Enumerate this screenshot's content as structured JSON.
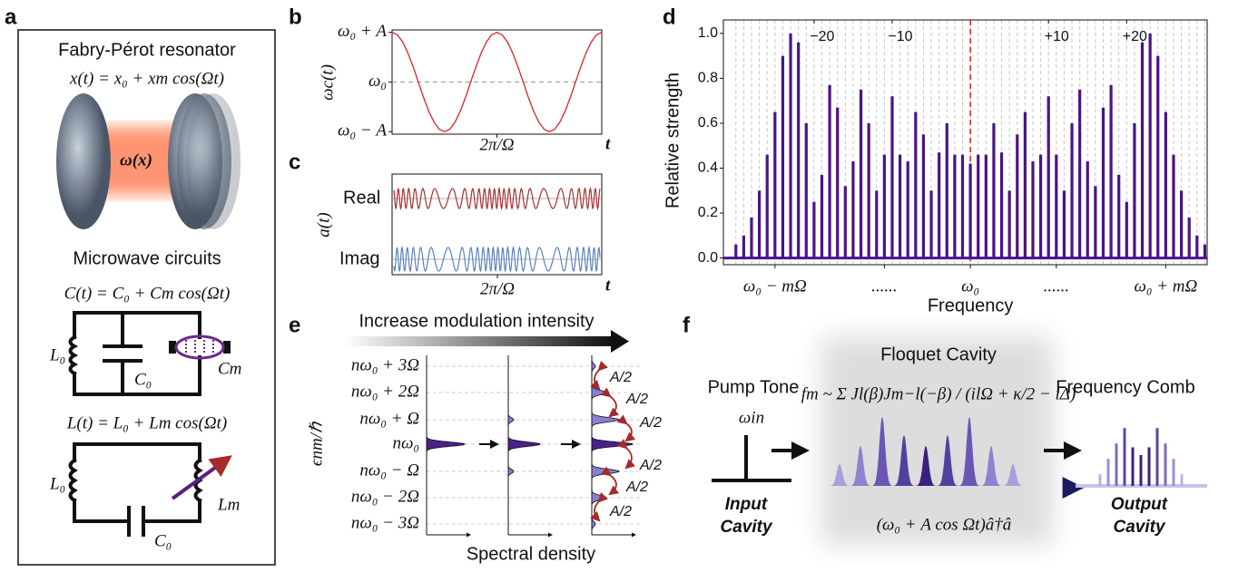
{
  "panel_labels": [
    "a",
    "b",
    "c",
    "d",
    "e",
    "f"
  ],
  "chart_data": [
    {
      "type": "line",
      "ylabel": "ωc(t)",
      "xlabel": "t",
      "color": "#d62728",
      "x": [
        0,
        0.05,
        0.1,
        0.15,
        0.2,
        0.25,
        0.3,
        0.35,
        0.4,
        0.45,
        0.5,
        0.55,
        0.6,
        0.65,
        0.7,
        0.75,
        0.8,
        0.85,
        0.9,
        0.95,
        1,
        1.05,
        1.1,
        1.15,
        1.2,
        1.25,
        1.3,
        1.35,
        1.4,
        1.45,
        1.5,
        1.55,
        1.6,
        1.65,
        1.7,
        1.75,
        1.8,
        1.85,
        1.9,
        1.95,
        2
      ],
      "values": [
        1,
        0.951,
        0.809,
        0.588,
        0.309,
        0,
        -0.309,
        -0.588,
        -0.809,
        -0.951,
        -1,
        -0.951,
        -0.809,
        -0.588,
        -0.309,
        0,
        0.309,
        0.588,
        0.809,
        0.951,
        1,
        0.951,
        0.809,
        0.588,
        0.309,
        0,
        -0.309,
        -0.588,
        -0.809,
        -0.951,
        -1,
        -0.951,
        -0.809,
        -0.588,
        -0.309,
        0,
        0.309,
        0.588,
        0.809,
        0.951,
        1
      ],
      "xlim": [
        0,
        2
      ],
      "ylim": [
        -1.05,
        1.05
      ],
      "xticks": [
        {
          "value": 1,
          "label": "2π/Ω"
        }
      ],
      "yticks": [
        {
          "value": 1,
          "label": "ω₀ + A"
        },
        {
          "value": 0,
          "label": "ω₀"
        },
        {
          "value": -1,
          "label": "ω₀ − A"
        }
      ],
      "ref_line": {
        "value": 0,
        "color": "#999999"
      }
    },
    {
      "type": "bar",
      "ylabel": "Relative strength",
      "xlabel": "Frequency",
      "color": "#4a1486",
      "grid": true,
      "x": [
        -30,
        -29,
        -28,
        -27,
        -26,
        -25,
        -24,
        -23,
        -22,
        -21,
        -20,
        -19,
        -18,
        -17,
        -16,
        -15,
        -14,
        -13,
        -12,
        -11,
        -10,
        -9,
        -8,
        -7,
        -6,
        -5,
        -4,
        -3,
        -2,
        -1,
        0,
        1,
        2,
        3,
        4,
        5,
        6,
        7,
        8,
        9,
        10,
        11,
        12,
        13,
        14,
        15,
        16,
        17,
        18,
        19,
        20,
        21,
        22,
        23,
        24,
        25,
        26,
        27,
        28,
        29,
        30
      ],
      "values": [
        0.06,
        0.1,
        0.18,
        0.3,
        0.46,
        0.65,
        0.9,
        1.0,
        0.96,
        0.6,
        0.25,
        0.37,
        0.77,
        0.67,
        0.32,
        0.43,
        0.75,
        0.6,
        0.3,
        0.46,
        0.72,
        0.46,
        0.43,
        0.65,
        0.55,
        0.3,
        0.47,
        0.6,
        0.46,
        0.46,
        0.42,
        0.46,
        0.46,
        0.6,
        0.47,
        0.3,
        0.55,
        0.65,
        0.43,
        0.46,
        0.72,
        0.46,
        0.3,
        0.6,
        0.75,
        0.43,
        0.32,
        0.67,
        0.77,
        0.37,
        0.25,
        0.6,
        0.96,
        1.0,
        0.9,
        0.65,
        0.46,
        0.3,
        0.18,
        0.1,
        0.06
      ],
      "xlim": [
        -31.6,
        30.3
      ],
      "ylim": [
        -0.03,
        1.06
      ],
      "yticks": [
        {
          "value": 0,
          "label": "0.0"
        },
        0.2,
        0.4,
        0.6,
        0.8,
        {
          "value": 1,
          "label": "1.0"
        }
      ],
      "xticks": [
        {
          "value": -25,
          "label": "ω₀ − mΩ"
        },
        {
          "value": -11,
          "label": "......"
        },
        {
          "value": 0,
          "label": "ω₀"
        },
        {
          "value": 11,
          "label": "......"
        },
        {
          "value": 25,
          "label": "ω₀ + mΩ"
        }
      ],
      "x2ticks": [
        {
          "value": -20,
          "label": "−20"
        },
        {
          "value": -10,
          "label": "−10"
        },
        {
          "value": 10,
          "label": "+10"
        },
        {
          "value": 20,
          "label": "+20"
        }
      ],
      "ref_line": {
        "value": 0,
        "color": "#e02020"
      }
    }
  ],
  "panel_a": {
    "fp_title": "Fabry-Pérot resonator",
    "fp_eq": "x(t) = x₀ + xm cos(Ωt)",
    "fp_freq": "ω(x)",
    "mw_title": "Microwave circuits",
    "c_eq": "C(t) = C₀ + Cm cos(Ωt)",
    "c_labels": [
      "L₀",
      "C₀",
      "Cm"
    ],
    "l_eq": "L(t) = L₀ + Lm cos(Ωt)",
    "l_labels": [
      "L₀",
      "C₀",
      "Lm"
    ]
  },
  "panel_c": {
    "ylabel": "a(t)",
    "rows": [
      "Real",
      "Imag"
    ],
    "xtick": "2π/Ω",
    "xlabel": "t"
  },
  "panel_e": {
    "title": "Increase modulation intensity",
    "ylabel": "ϵnm/ℏ",
    "levels": [
      "nω₀ + 3Ω",
      "nω₀ + 2Ω",
      "nω₀ + Ω",
      "nω₀",
      "nω₀ − Ω",
      "nω₀ − 2Ω",
      "nω₀ − 3Ω"
    ],
    "xlabel": "Spectral density",
    "couplings": [
      "A/2",
      "A/2",
      "A/2",
      "A/2",
      "A/2",
      "A/2"
    ]
  },
  "panel_f": {
    "pump": "Pump Tone",
    "pump_freq": "ωin",
    "cavity": "Floquet Cavity",
    "formula": "fm ~ Σ Jl(β)Jm−l(−β) / (ilΩ + κ/2 − iΔ)",
    "comb": "Frequency Comb",
    "input": [
      "Input",
      "Cavity"
    ],
    "output": [
      "Output",
      "Cavity"
    ],
    "hamiltonian": "(ω₀ + A cos Ωt)â†â"
  }
}
